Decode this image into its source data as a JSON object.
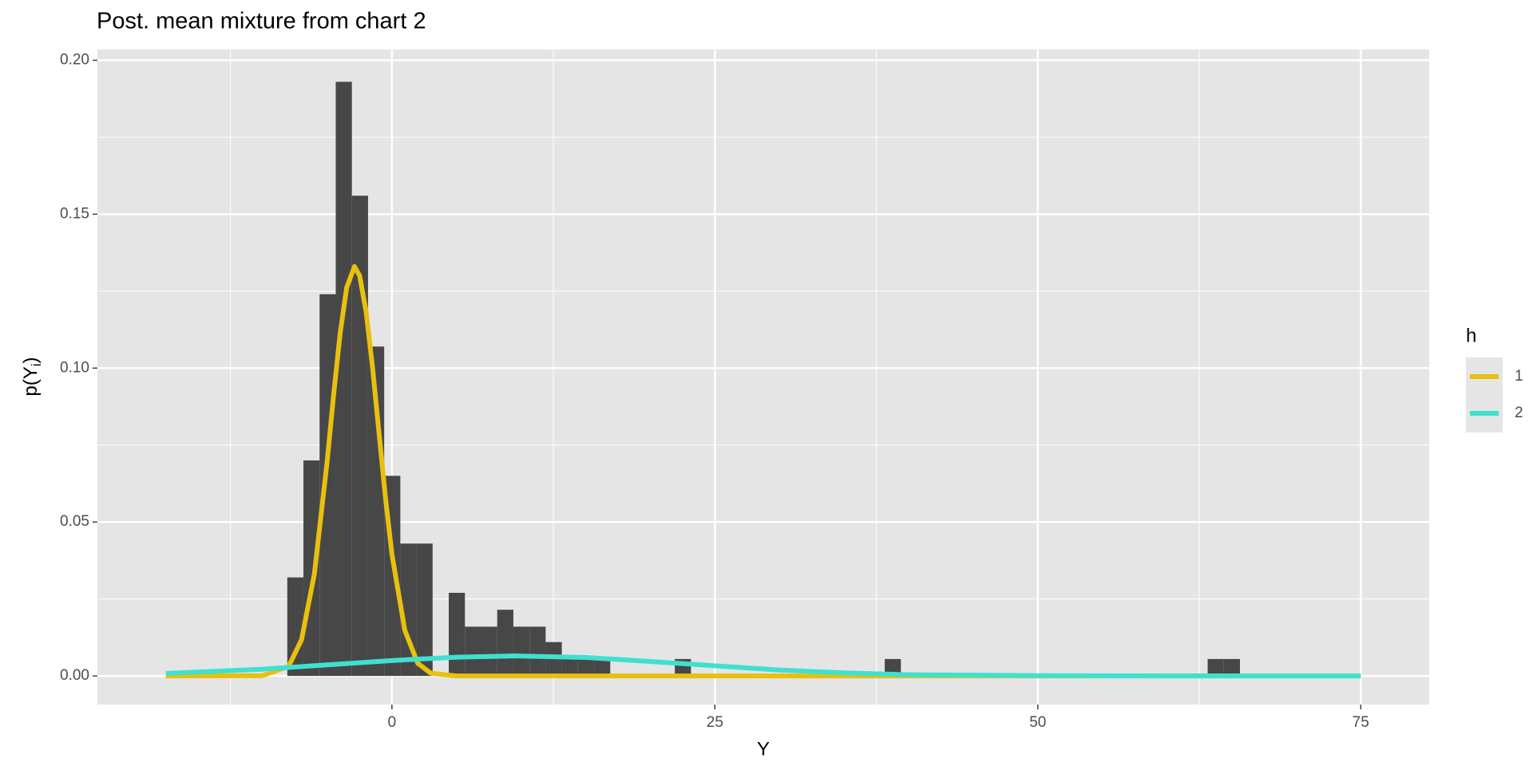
{
  "chart_data": {
    "type": "histogram_density",
    "title": "Post. mean mixture from chart 2",
    "x_label": "Y",
    "y_label_parts": [
      "p(Y",
      "i",
      ")"
    ],
    "bins": [
      -8.1,
      -6.85,
      -5.6,
      -4.35,
      -3.1,
      -1.85,
      -0.6,
      0.65,
      1.9,
      3.15,
      4.4,
      5.65,
      6.9,
      8.15,
      9.4,
      10.65,
      11.9,
      13.15,
      14.4,
      15.65,
      16.9,
      18.15,
      19.4,
      20.65,
      21.9,
      23.15,
      24.4,
      25.65,
      26.9,
      28.15,
      29.4,
      30.65,
      31.9,
      33.15,
      34.4,
      35.65,
      36.9,
      38.15,
      39.4,
      40.65,
      41.9,
      43.15,
      44.4,
      45.65,
      46.9,
      48.15,
      49.4,
      50.65,
      51.9,
      53.15,
      54.4,
      55.65,
      56.9,
      58.15,
      59.4,
      60.65,
      61.9,
      63.15,
      64.4,
      65.65
    ],
    "counts": [
      0.032,
      0.07,
      0.124,
      0.193,
      0.156,
      0.107,
      0.065,
      0.043,
      0.043,
      0,
      0.027,
      0.016,
      0.016,
      0.0215,
      0.016,
      0.016,
      0.011,
      0.0055,
      0.0055,
      0.0055,
      0,
      0,
      0,
      0,
      0.0055,
      0,
      0,
      0,
      0,
      0,
      0,
      0,
      0,
      0,
      0,
      0,
      0,
      0.0055,
      0,
      0,
      0,
      0,
      0,
      0,
      0,
      0,
      0,
      0,
      0,
      0,
      0,
      0,
      0,
      0,
      0,
      0,
      0,
      0.0055,
      0.0055
    ],
    "bar_color": "#474747",
    "legend_title": "h",
    "series": [
      {
        "name": "1",
        "color": "#e8c00e",
        "x": [
          -17.5,
          -10,
          -8,
          -7,
          -6,
          -5,
          -4.5,
          -4,
          -3.5,
          -2.9,
          -2.5,
          -2,
          -1.5,
          -1,
          -0.5,
          0,
          1,
          2,
          3,
          5,
          10,
          30,
          75
        ],
        "values": [
          0,
          0.0001,
          0.0031,
          0.0117,
          0.0332,
          0.0703,
          0.0919,
          0.1116,
          0.1262,
          0.133,
          0.13,
          0.1183,
          0.1002,
          0.0789,
          0.0579,
          0.0395,
          0.0148,
          0.0041,
          0.0009,
          0,
          0,
          0,
          0
        ]
      },
      {
        "name": "2",
        "color": "#40e0d0",
        "x": [
          -17.5,
          -10,
          -5,
          0,
          5,
          9.5,
          15,
          20,
          25,
          30,
          35,
          40,
          50,
          60,
          75
        ],
        "values": [
          0.0008,
          0.0022,
          0.0036,
          0.005,
          0.0061,
          0.0065,
          0.006,
          0.0047,
          0.0033,
          0.0019,
          0.001,
          0.0004,
          0.0001,
          0,
          0
        ]
      }
    ],
    "xlim": [
      -22.8,
      80.3
    ],
    "ylim": [
      -0.0093,
      0.2035
    ],
    "xticks": [
      0,
      25,
      50,
      75
    ],
    "yticks": [
      {
        "value": 0,
        "label": "0.00"
      },
      0.05,
      {
        "value": 0.1,
        "label": "0.10"
      },
      0.15,
      {
        "value": 0.2,
        "label": "0.20"
      }
    ],
    "grid": true
  }
}
